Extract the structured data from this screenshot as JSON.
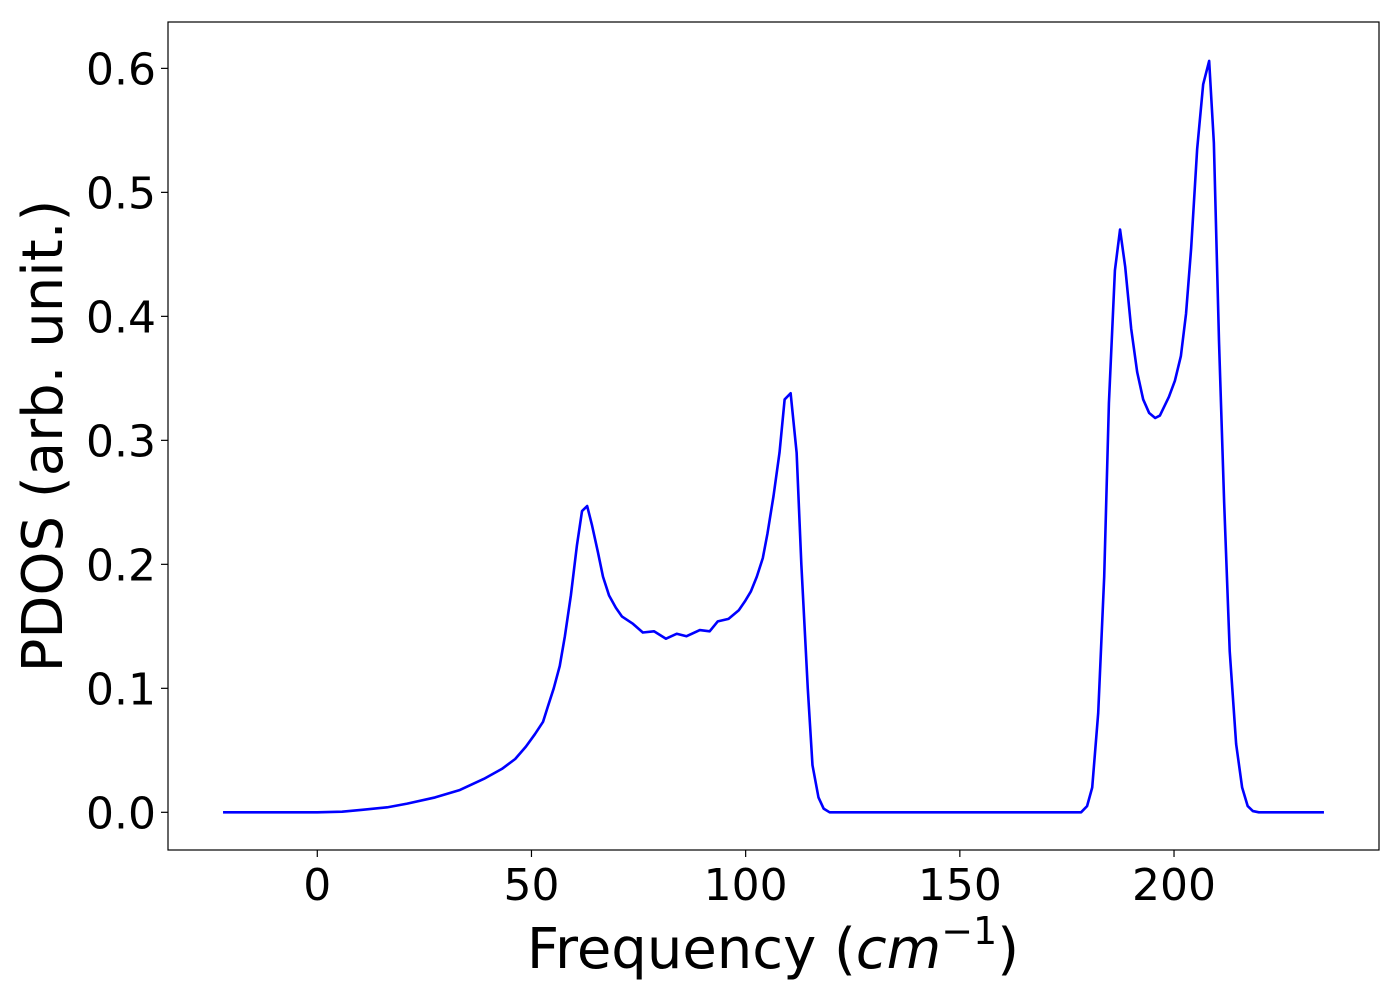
{
  "chart_data": {
    "type": "line",
    "xlabel": [
      "Frequency (",
      "cm",
      "−1",
      ")"
    ],
    "ylabel": "PDOS (arb. unit.)",
    "xlim": [
      -34.85,
      247.85
    ],
    "ylim": [
      -0.0304,
      0.6374
    ],
    "xticks": [
      0,
      50,
      100,
      150,
      200
    ],
    "yticks": [
      {
        "value": 0,
        "label": "0.0"
      },
      {
        "value": 0.1,
        "label": "0.1"
      },
      {
        "value": 0.2,
        "label": "0.2"
      },
      {
        "value": 0.3,
        "label": "0.3"
      },
      {
        "value": 0.4,
        "label": "0.4"
      },
      {
        "value": 0.5,
        "label": "0.5"
      },
      {
        "value": 0.6,
        "label": "0.6"
      }
    ],
    "grid": false,
    "series": [
      {
        "color": "#0000ff",
        "x": [
          -22,
          0,
          5.8,
          10.5,
          16.3,
          21,
          27.5,
          33.3,
          38.9,
          43.1,
          46.2,
          48.7,
          50.8,
          52.7,
          53.8,
          55.2,
          56.6,
          57.8,
          59.2,
          60.6,
          61.8,
          63,
          64.1,
          65.5,
          66.7,
          68.1,
          69.7,
          71.1,
          73.7,
          76,
          78.6,
          81.4,
          83.9,
          86.2,
          89.3,
          91.6,
          93.5,
          96,
          98.4,
          99.8,
          101.2,
          102.6,
          104,
          105.1,
          106.5,
          107.9,
          109.1,
          110.5,
          111.9,
          113,
          114.5,
          115.6,
          117,
          118.2,
          119.6,
          178.3,
          179.7,
          180.9,
          182.3,
          183.7,
          184.8,
          186.2,
          187.4,
          188.6,
          190,
          191.4,
          192.8,
          194.2,
          195.6,
          196.7,
          198.8,
          200.2,
          201.6,
          202.8,
          204,
          205.4,
          206.8,
          208.2,
          209.3,
          210.5,
          211.7,
          213,
          214.5,
          215.9,
          217.2,
          218.4,
          219.8,
          235
        ],
        "values": [
          0,
          0,
          0.0005,
          0.002,
          0.004,
          0.007,
          0.012,
          0.018,
          0.027,
          0.035,
          0.043,
          0.053,
          0.063,
          0.073,
          0.085,
          0.1,
          0.118,
          0.142,
          0.175,
          0.215,
          0.243,
          0.247,
          0.232,
          0.21,
          0.19,
          0.175,
          0.165,
          0.158,
          0.152,
          0.145,
          0.146,
          0.14,
          0.144,
          0.142,
          0.147,
          0.146,
          0.154,
          0.156,
          0.163,
          0.17,
          0.178,
          0.19,
          0.205,
          0.225,
          0.255,
          0.29,
          0.333,
          0.338,
          0.29,
          0.2,
          0.1,
          0.038,
          0.012,
          0.003,
          0,
          0,
          0.005,
          0.02,
          0.08,
          0.19,
          0.33,
          0.437,
          0.47,
          0.44,
          0.39,
          0.355,
          0.333,
          0.322,
          0.318,
          0.32,
          0.335,
          0.348,
          0.368,
          0.402,
          0.455,
          0.535,
          0.587,
          0.606,
          0.54,
          0.38,
          0.25,
          0.13,
          0.055,
          0.02,
          0.005,
          0.001,
          0,
          0
        ]
      }
    ]
  }
}
